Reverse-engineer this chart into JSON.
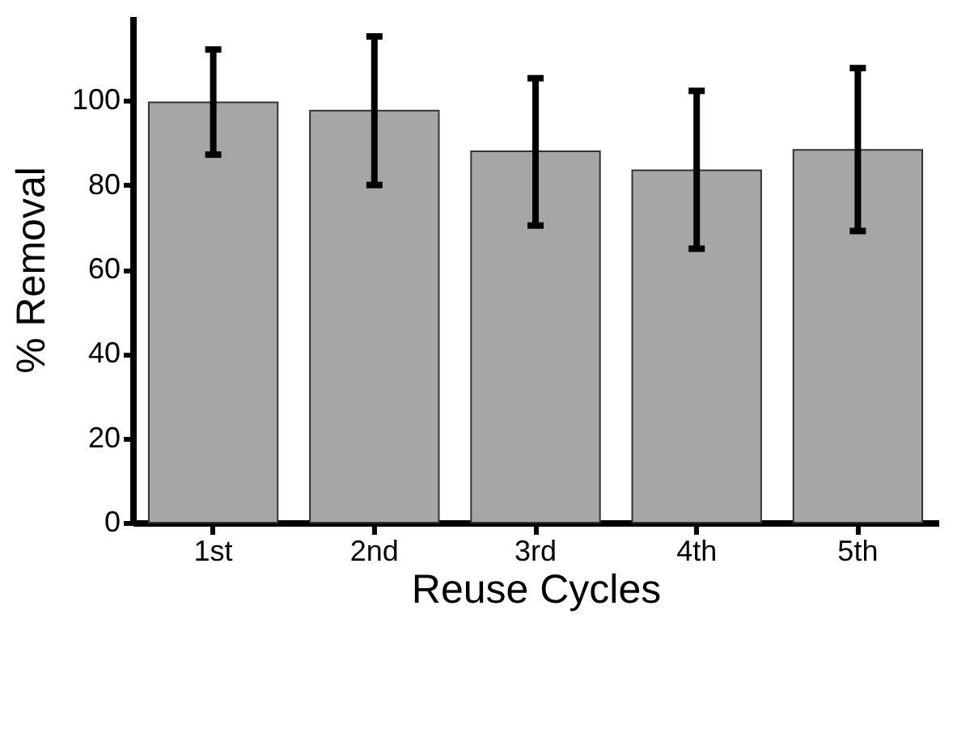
{
  "chart_data": {
    "type": "bar",
    "xlabel": "Reuse Cycles",
    "ylabel": "% Removal",
    "categories": [
      "1st",
      "2nd",
      "3rd",
      "4th",
      "5th"
    ],
    "values": [
      99.6,
      97.6,
      88,
      83.5,
      88.3
    ],
    "errors": [
      [
        87.2,
        112.1
      ],
      [
        80,
        115.2
      ],
      [
        70.4,
        105.3
      ],
      [
        64.9,
        102.3
      ],
      [
        69.1,
        107.7
      ]
    ],
    "color": "#a6a6a6",
    "ylim": [
      0,
      120
    ],
    "yticks": [
      0,
      20,
      40,
      60,
      80,
      100
    ],
    "grid": false
  }
}
